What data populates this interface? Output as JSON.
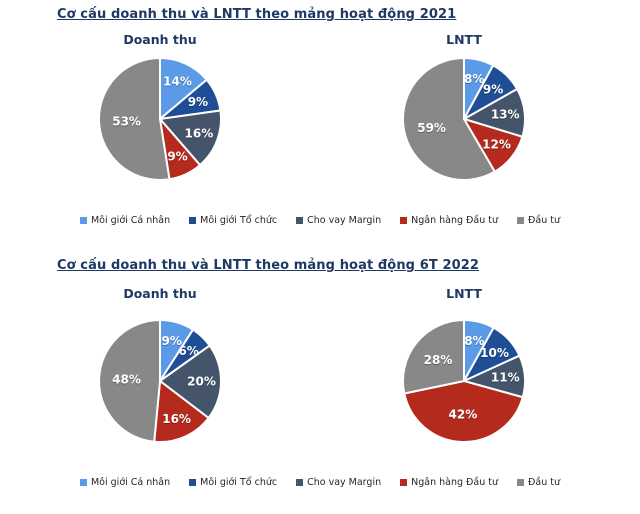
{
  "page": {
    "background": "#ffffff"
  },
  "colors": {
    "series": [
      "#5A9AE6",
      "#1F4E96",
      "#44546A",
      "#B42A1D",
      "#888888"
    ],
    "title_text": "#1F3864",
    "legend_text": "#262626",
    "pie_label_text": "#ffffff",
    "slice_border": "#ffffff"
  },
  "legend": {
    "items": [
      "Môi giới Cá nhân",
      "Môi giới Tổ chức",
      "Cho vay Margin",
      "Ngân hàng Đầu tư",
      "Đầu tư"
    ]
  },
  "chart_data": [
    {
      "type": "pie",
      "title": "Cơ cấu doanh thu và LNTT theo mảng hoạt động 2021",
      "categories": [
        "Môi giới Cá nhân",
        "Môi giới Tổ chức",
        "Cho vay Margin",
        "Ngân hàng Đầu tư",
        "Đầu tư"
      ],
      "series": [
        {
          "name": "Doanh thu",
          "values": [
            14,
            9,
            16,
            9,
            53
          ],
          "unit": "%"
        },
        {
          "name": "LNTT",
          "values": [
            8,
            9,
            13,
            12,
            59
          ],
          "unit": "%"
        }
      ],
      "label_format": "percent",
      "start_angle": "top",
      "direction": "clockwise",
      "legend_position": "bottom"
    },
    {
      "type": "pie",
      "title": "Cơ cấu doanh thu và LNTT theo mảng hoạt động 6T 2022",
      "categories": [
        "Môi giới Cá nhân",
        "Môi giới Tổ chức",
        "Cho vay Margin",
        "Ngân hàng Đầu tư",
        "Đầu tư"
      ],
      "series": [
        {
          "name": "Doanh thu",
          "values": [
            9,
            6,
            20,
            16,
            48
          ],
          "unit": "%"
        },
        {
          "name": "LNTT",
          "values": [
            8,
            10,
            11,
            42,
            28
          ],
          "unit": "%"
        }
      ],
      "label_format": "percent",
      "start_angle": "top",
      "direction": "clockwise",
      "legend_position": "bottom"
    }
  ]
}
